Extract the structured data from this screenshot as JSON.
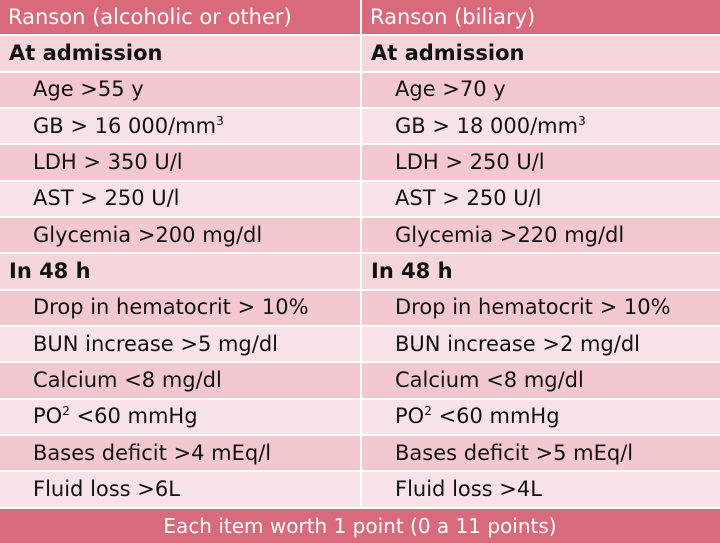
{
  "header": {
    "left_title": "Ranson (alcoholic or other)",
    "right_title": "Ranson (biliary)"
  },
  "sections": [
    {
      "left_heading": "At admission",
      "right_heading": "At admission",
      "rows": [
        {
          "left": "Age >55 y",
          "right": "Age >70 y"
        },
        {
          "left": "GB > 16 000/mm",
          "left_sup": "3",
          "right": "GB > 18 000/mm",
          "right_sup": "3"
        },
        {
          "left": "LDH > 350 U/l",
          "right": "LDH > 250 U/l"
        },
        {
          "left": "AST > 250 U/l",
          "right": "AST > 250 U/l"
        },
        {
          "left": "Glycemia >200 mg/dl",
          "right": "Glycemia >220 mg/dl"
        }
      ]
    },
    {
      "left_heading": "In 48 h",
      "right_heading": "In 48 h",
      "rows": [
        {
          "left": "Drop in hematocrit > 10%",
          "right": "Drop in hematocrit > 10%"
        },
        {
          "left": "BUN increase >5 mg/dl",
          "right": "BUN increase >2 mg/dl"
        },
        {
          "left": "Calcium <8 mg/dl",
          "right": "Calcium <8 mg/dl"
        },
        {
          "left_pre": "PO",
          "left_sup": "2",
          "left": " <60 mmHg",
          "right_pre": "PO",
          "right_sup": "2",
          "right": " <60 mmHg"
        },
        {
          "left": "Bases deficit >4 mEq/l",
          "right": "Bases deficit >5 mEq/l"
        },
        {
          "left": "Fluid loss >6L",
          "right": "Fluid loss >4L"
        }
      ]
    }
  ],
  "footer": {
    "note": "Each item worth 1 point (0 a 11 points)"
  },
  "colors": {
    "header_bg": "#d86a7b",
    "row_dark": "#f3c9cf",
    "row_light": "#f8e3e6",
    "section_bg": "#f5d6db"
  }
}
